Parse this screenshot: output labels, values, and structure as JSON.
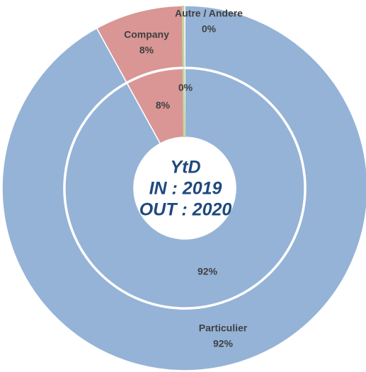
{
  "chart_data": {
    "type": "donut",
    "center_text": [
      "YtD",
      "IN : 2019",
      "OUT : 2020"
    ],
    "categories": [
      "Particulier",
      "Company",
      "Autre / Andere"
    ],
    "colors": [
      "#95b3d7",
      "#d99694",
      "#c3d69b"
    ],
    "series": [
      {
        "values": [
          92,
          8,
          0
        ],
        "value_labels": [
          "92%",
          "8%",
          "0%"
        ]
      },
      {
        "values": [
          92,
          8,
          0
        ],
        "value_labels": [
          "92%",
          "8%",
          "0%"
        ]
      }
    ]
  }
}
